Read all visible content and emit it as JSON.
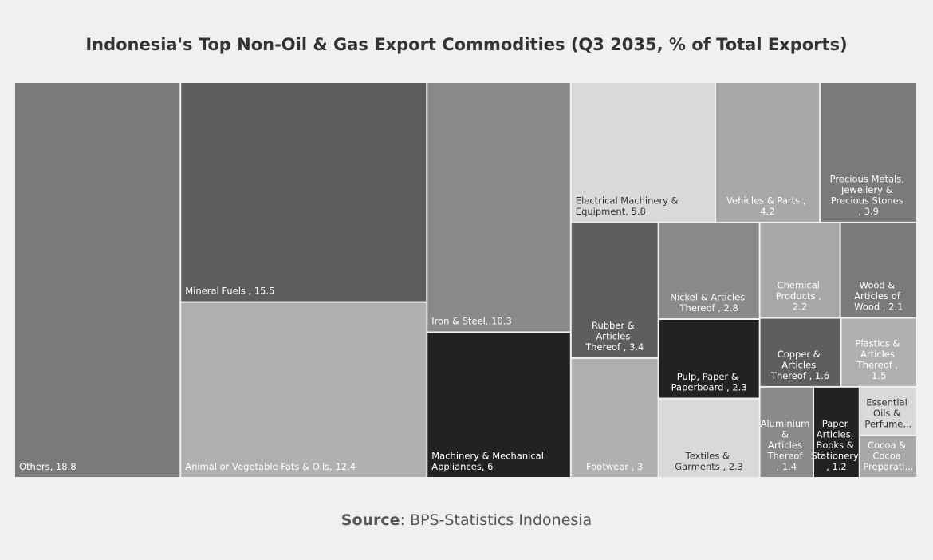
{
  "chart_data": {
    "type": "treemap",
    "title": "Indonesia's Top Non-Oil & Gas Export Commodities (Q3 2035, % of Total Exports)",
    "labels": [
      "Others, 18.8",
      "Mineral Fuels , 15.5",
      "Animal or Vegetable Fats & Oils, 12.4",
      "Iron & Steel, 10.3",
      "Machinery & Mechanical Appliances, 6",
      "Electrical Machinery & Equipment, 5.8",
      "Vehicles & Parts , 4.2",
      "Precious Metals, Jewellery & Precious Stones , 3.9",
      "Rubber & Articles Thereof , 3.4",
      "Footwear , 3",
      "Nickel & Articles Thereof , 2.8",
      "Pulp, Paper & Paperboard , 2.3",
      "Textiles & Garments , 2.3",
      "Chemical Products , 2.2",
      "Wood & Articles of Wood , 2.1",
      "Copper & Articles Thereof , 1.6",
      "Plastics & Articles Thereof , 1.5",
      "Aluminium & Articles Thereof , 1.4",
      "Paper Articles, Books & Stationery , 1.2",
      "Essential Oils & Perfume...",
      "Cocoa & Cocoa Preparati..."
    ],
    "values": [
      18.8,
      15.5,
      12.4,
      10.3,
      6,
      5.8,
      4.2,
      3.9,
      3.4,
      3,
      2.8,
      2.3,
      2.3,
      2.2,
      2.1,
      1.6,
      1.5,
      1.4,
      1.2,
      0.8,
      0.7
    ],
    "colors": [
      "#7a7a7a",
      "#5e5e5e",
      "#b0b0b0",
      "#8a8a8a",
      "#222222",
      "#d9d9d9",
      "#a8a8a8",
      "#7a7a7a",
      "#5e5e5e",
      "#b0b0b0",
      "#8a8a8a",
      "#222222",
      "#d9d9d9",
      "#a8a8a8",
      "#7a7a7a",
      "#5e5e5e",
      "#b0b0b0",
      "#8a8a8a",
      "#222222",
      "#d9d9d9",
      "#a8a8a8"
    ],
    "source_label": "Source",
    "source_text": ": BPS-Statistics Indonesia"
  }
}
